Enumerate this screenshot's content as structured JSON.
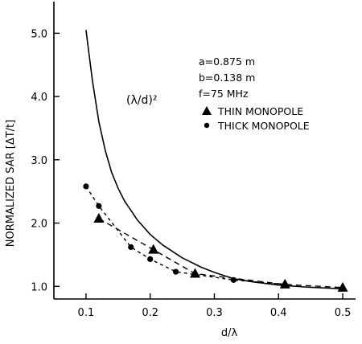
{
  "chart_data": {
    "type": "line",
    "title": "",
    "xlabel": "d/λ",
    "ylabel": "NORMALIZED SAR [ΔT/t]",
    "xlim": [
      0.05,
      0.52
    ],
    "ylim": [
      0.8,
      5.5
    ],
    "x_ticks": [
      0.1,
      0.2,
      0.3,
      0.4,
      0.5
    ],
    "x_tick_labels": [
      "0.1",
      "0.2",
      "0.3",
      "0.4",
      "0.5"
    ],
    "y_ticks": [
      1.0,
      2.0,
      3.0,
      4.0,
      5.0
    ],
    "y_tick_labels": [
      "1.0",
      "2.0",
      "3.0",
      "4.0",
      "5.0"
    ],
    "grid": false,
    "annotations": [
      "a=0.875 m",
      "b=0.138 m",
      "f=75 MHz"
    ],
    "series": [
      {
        "name": "(λ/d)²",
        "style": "solid-line",
        "x": [
          0.1,
          0.11,
          0.12,
          0.13,
          0.14,
          0.15,
          0.16,
          0.18,
          0.2,
          0.22,
          0.25,
          0.28,
          0.3,
          0.33,
          0.36,
          0.4,
          0.44,
          0.48,
          0.5
        ],
        "y": [
          5.05,
          4.25,
          3.6,
          3.15,
          2.8,
          2.55,
          2.35,
          2.05,
          1.82,
          1.65,
          1.45,
          1.3,
          1.22,
          1.12,
          1.07,
          1.02,
          0.99,
          0.97,
          0.96
        ]
      },
      {
        "name": "THIN MONOPOLE",
        "style": "triangle-dashed",
        "x": [
          0.12,
          0.205,
          0.27,
          0.41,
          0.5
        ],
        "y": [
          2.07,
          1.58,
          1.2,
          1.03,
          0.98
        ]
      },
      {
        "name": "THICK MONOPOLE",
        "style": "circle-dashed",
        "x": [
          0.1,
          0.12,
          0.17,
          0.2,
          0.24,
          0.33,
          0.41
        ],
        "y": [
          2.58,
          2.27,
          1.62,
          1.43,
          1.23,
          1.1,
          1.03
        ]
      }
    ]
  }
}
